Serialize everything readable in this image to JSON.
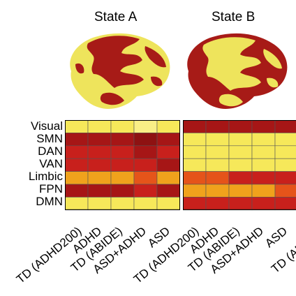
{
  "titles": {
    "state_a": "State A",
    "state_b": "State B"
  },
  "networks": [
    "Visual",
    "SMN",
    "DAN",
    "VAN",
    "Limbic",
    "FPN",
    "DMN"
  ],
  "groups": [
    "TD (ADHD200)",
    "ADHD",
    "TD (ABIDE)",
    "ASD+ADHD",
    "ASD"
  ],
  "groups_b_visible": [
    "TD (ADHD200)",
    "ADHD",
    "TD (ABIDE)",
    "ASD+ADHD",
    "ASD",
    "TD (ADH"
  ],
  "colors": {
    "yellow": "#f6e85a",
    "light_yellow": "#f9ef86",
    "orange": "#f0a21c",
    "orange_red": "#e5541a",
    "red": "#c8201c",
    "dark_red": "#a61616",
    "deep_red": "#8e1212",
    "brain_red": "#a71b17",
    "brain_yellow": "#eee45c"
  },
  "chart_data": [
    {
      "type": "heatmap",
      "title": "State A",
      "rows": [
        "Visual",
        "SMN",
        "DAN",
        "VAN",
        "Limbic",
        "FPN",
        "DMN"
      ],
      "columns": [
        "TD (ADHD200)",
        "ADHD",
        "TD (ABIDE)",
        "ASD+ADHD",
        "ASD"
      ],
      "values": [
        [
          "yellow",
          "yellow",
          "yellow",
          "light_yellow",
          "yellow"
        ],
        [
          "dark_red",
          "dark_red",
          "dark_red",
          "deep_red",
          "dark_red"
        ],
        [
          "red",
          "red",
          "red",
          "dark_red",
          "red"
        ],
        [
          "red",
          "red",
          "red",
          "red",
          "dark_red"
        ],
        [
          "orange",
          "orange",
          "orange",
          "orange_red",
          "orange"
        ],
        [
          "dark_red",
          "dark_red",
          "dark_red",
          "red",
          "dark_red"
        ],
        [
          "yellow",
          "yellow",
          "yellow",
          "yellow",
          "yellow"
        ]
      ]
    },
    {
      "type": "heatmap",
      "title": "State B",
      "rows": [
        "Visual",
        "SMN",
        "DAN",
        "VAN",
        "Limbic",
        "FPN",
        "DMN"
      ],
      "columns": [
        "TD (ADHD200)",
        "ADHD",
        "TD (ABIDE)",
        "ASD+ADHD",
        "ASD"
      ],
      "values": [
        [
          "dark_red",
          "dark_red",
          "dark_red",
          "dark_red",
          "dark_red"
        ],
        [
          "yellow",
          "yellow",
          "yellow",
          "yellow",
          "yellow"
        ],
        [
          "yellow",
          "yellow",
          "yellow",
          "yellow",
          "yellow"
        ],
        [
          "yellow",
          "yellow",
          "yellow",
          "yellow",
          "yellow"
        ],
        [
          "orange_red",
          "orange_red",
          "red",
          "red",
          "red"
        ],
        [
          "orange",
          "orange",
          "orange",
          "orange",
          "orange_red"
        ],
        [
          "red",
          "red",
          "red",
          "red",
          "red"
        ]
      ]
    }
  ]
}
